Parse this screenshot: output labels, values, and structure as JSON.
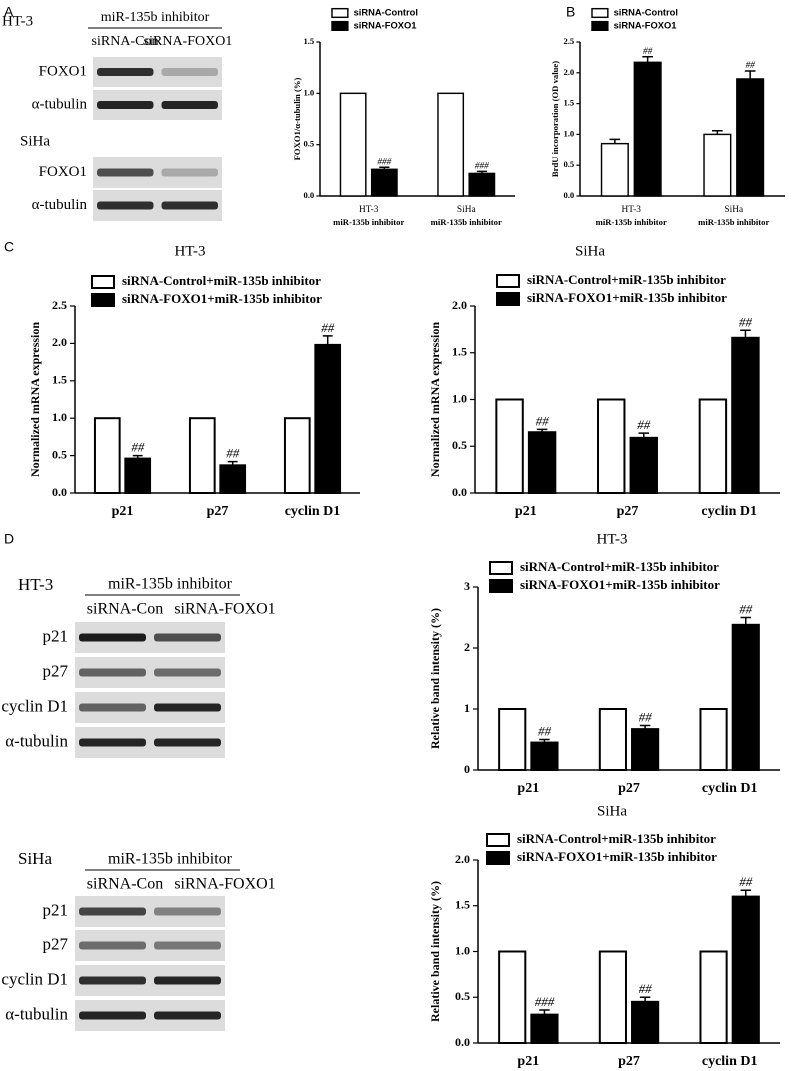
{
  "panel_labels": [
    "A",
    "B",
    "C",
    "D"
  ],
  "blots": [
    {
      "cell_line": "HT-3",
      "treatment": "miR-135b inhibitor",
      "lanes": [
        "siRNA-Con",
        "siRNA-FOXO1"
      ],
      "rows": [
        "FOXO1",
        "α-tubulin"
      ]
    },
    {
      "cell_line": "SiHa",
      "rows": [
        "FOXO1",
        "α-tubulin"
      ]
    },
    {
      "cell_line": "HT-3",
      "treatment": "miR-135b inhibitor",
      "lanes": [
        "siRNA-Con",
        "siRNA-FOXO1"
      ],
      "rows": [
        "p21",
        "p27",
        "cyclin D1",
        "α-tubulin"
      ]
    },
    {
      "cell_line": "SiHa",
      "treatment": "miR-135b inhibitor",
      "lanes": [
        "siRNA-Con",
        "siRNA-FOXO1"
      ],
      "rows": [
        "p21",
        "p27",
        "cyclin D1",
        "α-tubulin"
      ]
    }
  ],
  "chart_data": [
    {
      "type": "bar",
      "ylabel": "FOXO1/α-tubulin (%)",
      "categories": [
        "HT-3",
        "SiHa"
      ],
      "category_sublabels": [
        "miR-135b inhibitor",
        "miR-135b inhibitor"
      ],
      "ylim": [
        0,
        1.5
      ],
      "yticks": [
        {
          "value": 0,
          "label": "0.0"
        },
        0.5,
        {
          "value": 1,
          "label": "1.0"
        },
        1.5
      ],
      "series": [
        {
          "name": "siRNA-Control",
          "color": "#ffffff",
          "values": [
            1.0,
            1.0
          ]
        },
        {
          "name": "siRNA-FOXO1",
          "color": "#000000",
          "values": [
            0.26,
            0.22
          ],
          "errors": [
            0.02,
            0.02
          ],
          "annotations": [
            "###",
            "###"
          ]
        }
      ]
    },
    {
      "type": "bar",
      "ylabel": "BrdU incorporation (OD value)",
      "categories": [
        "HT-3",
        "SiHa"
      ],
      "category_sublabels": [
        "miR-135b inhibitor",
        "miR-135b inhibitor"
      ],
      "ylim": [
        0,
        2.5
      ],
      "yticks": [
        {
          "value": 0,
          "label": "0.0"
        },
        0.5,
        {
          "value": 1,
          "label": "1.0"
        },
        1.5,
        {
          "value": 2,
          "label": "2.0"
        },
        2.5
      ],
      "series": [
        {
          "name": "siRNA-Control",
          "color": "#ffffff",
          "values": [
            0.85,
            1.0
          ],
          "errors": [
            0.07,
            0.06
          ]
        },
        {
          "name": "siRNA-FOXO1",
          "color": "#000000",
          "values": [
            2.17,
            1.9
          ],
          "errors": [
            0.09,
            0.13
          ],
          "annotations": [
            "##",
            "##"
          ]
        }
      ]
    },
    {
      "type": "bar",
      "title": "HT-3",
      "ylabel": "Normalized mRNA expression",
      "categories": [
        "p21",
        "p27",
        "cyclin D1"
      ],
      "ylim": [
        0,
        2.5
      ],
      "yticks": [
        {
          "value": 0,
          "label": "0.0"
        },
        0.5,
        {
          "value": 1,
          "label": "1.0"
        },
        1.5,
        {
          "value": 2,
          "label": "2.0"
        },
        2.5
      ],
      "series": [
        {
          "name": "siRNA-Control+miR-135b inhibitor",
          "color": "#ffffff",
          "values": [
            1.0,
            1.0,
            1.0
          ]
        },
        {
          "name": "siRNA-FOXO1+miR-135b inhibitor",
          "color": "#000000",
          "values": [
            0.46,
            0.37,
            1.98
          ],
          "errors": [
            0.04,
            0.05,
            0.12
          ],
          "annotations": [
            "##",
            "##",
            "##"
          ]
        }
      ]
    },
    {
      "type": "bar",
      "title": "SiHa",
      "ylabel": "Normalized mRNA expression",
      "categories": [
        "p21",
        "p27",
        "cyclin D1"
      ],
      "ylim": [
        0,
        2.0
      ],
      "yticks": [
        {
          "value": 0,
          "label": "0.0"
        },
        0.5,
        {
          "value": 1,
          "label": "1.0"
        },
        1.5,
        {
          "value": 2,
          "label": "2.0"
        }
      ],
      "series": [
        {
          "name": "siRNA-Control+miR-135b inhibitor",
          "color": "#ffffff",
          "values": [
            1.0,
            1.0,
            1.0
          ]
        },
        {
          "name": "siRNA-FOXO1+miR-135b inhibitor",
          "color": "#000000",
          "values": [
            0.65,
            0.59,
            1.66
          ],
          "errors": [
            0.03,
            0.05,
            0.08
          ],
          "annotations": [
            "##",
            "##",
            "##"
          ]
        }
      ]
    },
    {
      "type": "bar",
      "title": "HT-3",
      "ylabel": "Relative band intensity (%)",
      "categories": [
        "p21",
        "p27",
        "cyclin D1"
      ],
      "ylim": [
        0,
        3
      ],
      "yticks": [
        0,
        1,
        2,
        3
      ],
      "series": [
        {
          "name": "siRNA-Control+miR-135b inhibitor",
          "color": "#ffffff",
          "values": [
            1,
            1,
            1
          ]
        },
        {
          "name": "siRNA-FOXO1+miR-135b inhibitor",
          "color": "#000000",
          "values": [
            0.45,
            0.67,
            2.38
          ],
          "errors": [
            0.05,
            0.06,
            0.12
          ],
          "annotations": [
            "##",
            "##",
            "##"
          ]
        }
      ]
    },
    {
      "type": "bar",
      "title": "SiHa",
      "ylabel": "Relative band intensity (%)",
      "categories": [
        "p21",
        "p27",
        "cyclin D1"
      ],
      "ylim": [
        0,
        2.0
      ],
      "yticks": [
        {
          "value": 0,
          "label": "0.0"
        },
        0.5,
        {
          "value": 1,
          "label": "1.0"
        },
        1.5,
        {
          "value": 2,
          "label": "2.0"
        }
      ],
      "series": [
        {
          "name": "siRNA-Control+miR-135b inhibitor",
          "color": "#ffffff",
          "values": [
            1.0,
            1.0,
            1.0
          ]
        },
        {
          "name": "siRNA-FOXO1+miR-135b inhibitor",
          "color": "#000000",
          "values": [
            0.31,
            0.45,
            1.6
          ],
          "errors": [
            0.05,
            0.05,
            0.07
          ],
          "annotations": [
            "###",
            "##",
            "##"
          ]
        }
      ]
    }
  ]
}
